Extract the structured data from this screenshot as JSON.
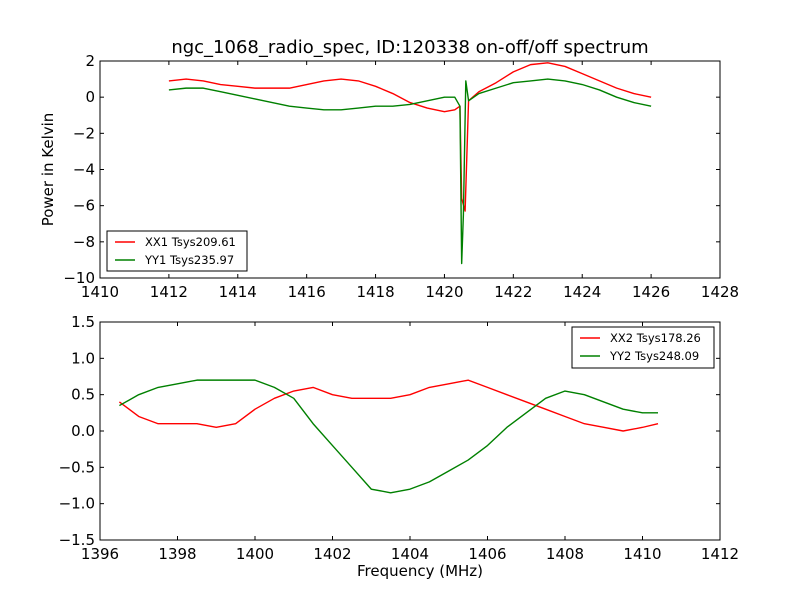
{
  "figure": {
    "title": "ngc_1068_radio_spec, ID:120338 on-off/off spectrum"
  },
  "chart_data": [
    {
      "type": "line",
      "ylabel": "Power in Kelvin",
      "xlabel": "",
      "xlim": [
        1410,
        1428
      ],
      "ylim": [
        -10,
        2
      ],
      "xticks": [
        1410,
        1412,
        1414,
        1416,
        1418,
        1420,
        1422,
        1424,
        1426,
        1428
      ],
      "xtick_labels": [
        "1410",
        "1412",
        "1414",
        "1416",
        "1418",
        "1420",
        "1422",
        "1424",
        "1426",
        "1428"
      ],
      "yticks": [
        -10,
        -8,
        -6,
        -4,
        -2,
        0,
        2
      ],
      "ytick_labels": [
        "−10",
        "−8",
        "−6",
        "−4",
        "−2",
        "0",
        "2"
      ],
      "grid": false,
      "legend_position": "lower-left",
      "series": [
        {
          "name": "XX1 Tsys209.61",
          "color": "#ff0000",
          "x": [
            1412.0,
            1412.5,
            1413.0,
            1413.5,
            1414.0,
            1414.5,
            1415.0,
            1415.5,
            1416.0,
            1416.5,
            1417.0,
            1417.5,
            1418.0,
            1418.5,
            1419.0,
            1419.5,
            1420.0,
            1420.3,
            1420.45,
            1420.5,
            1420.6,
            1420.7,
            1421.0,
            1421.5,
            1422.0,
            1422.5,
            1423.0,
            1423.5,
            1424.0,
            1424.5,
            1425.0,
            1425.5,
            1426.0
          ],
          "y": [
            0.9,
            1.0,
            0.9,
            0.7,
            0.6,
            0.5,
            0.5,
            0.5,
            0.7,
            0.9,
            1.0,
            0.9,
            0.6,
            0.2,
            -0.3,
            -0.6,
            -0.8,
            -0.7,
            -0.5,
            -5.6,
            -6.3,
            -0.2,
            0.3,
            0.8,
            1.4,
            1.8,
            1.9,
            1.7,
            1.3,
            0.9,
            0.5,
            0.2,
            0.0
          ]
        },
        {
          "name": "YY1 Tsys235.97",
          "color": "#008000",
          "x": [
            1412.0,
            1412.5,
            1413.0,
            1413.5,
            1414.0,
            1414.5,
            1415.0,
            1415.5,
            1416.0,
            1416.5,
            1417.0,
            1417.5,
            1418.0,
            1418.5,
            1419.0,
            1419.5,
            1420.0,
            1420.3,
            1420.45,
            1420.5,
            1420.55,
            1420.62,
            1420.7,
            1421.0,
            1421.5,
            1422.0,
            1422.5,
            1423.0,
            1423.5,
            1424.0,
            1424.5,
            1425.0,
            1425.5,
            1426.0
          ],
          "y": [
            0.4,
            0.5,
            0.5,
            0.3,
            0.1,
            -0.1,
            -0.3,
            -0.5,
            -0.6,
            -0.7,
            -0.7,
            -0.6,
            -0.5,
            -0.5,
            -0.4,
            -0.2,
            0.0,
            0.0,
            -0.5,
            -9.2,
            -6.5,
            0.9,
            -0.2,
            0.2,
            0.5,
            0.8,
            0.9,
            1.0,
            0.9,
            0.7,
            0.4,
            0.0,
            -0.3,
            -0.5
          ]
        }
      ]
    },
    {
      "type": "line",
      "ylabel": "",
      "xlabel": "Frequency (MHz)",
      "xlim": [
        1396,
        1412
      ],
      "ylim": [
        -1.5,
        1.5
      ],
      "xticks": [
        1396,
        1398,
        1400,
        1402,
        1404,
        1406,
        1408,
        1410,
        1412
      ],
      "xtick_labels": [
        "1396",
        "1398",
        "1400",
        "1402",
        "1404",
        "1406",
        "1408",
        "1410",
        "1412"
      ],
      "yticks": [
        -1.5,
        -1.0,
        -0.5,
        0.0,
        0.5,
        1.0,
        1.5
      ],
      "ytick_labels": [
        "−1.5",
        "−1.0",
        "−0.5",
        "0.0",
        "0.5",
        "1.0",
        "1.5"
      ],
      "grid": false,
      "legend_position": "upper-right",
      "series": [
        {
          "name": "XX2 Tsys178.26",
          "color": "#ff0000",
          "x": [
            1396.5,
            1397.0,
            1397.5,
            1398.0,
            1398.5,
            1399.0,
            1399.5,
            1400.0,
            1400.5,
            1401.0,
            1401.5,
            1402.0,
            1402.5,
            1403.0,
            1403.5,
            1404.0,
            1404.5,
            1405.0,
            1405.5,
            1406.0,
            1406.5,
            1407.0,
            1407.5,
            1408.0,
            1408.5,
            1409.0,
            1409.5,
            1410.0,
            1410.4
          ],
          "y": [
            0.4,
            0.2,
            0.1,
            0.1,
            0.1,
            0.05,
            0.1,
            0.3,
            0.45,
            0.55,
            0.6,
            0.5,
            0.45,
            0.45,
            0.45,
            0.5,
            0.6,
            0.65,
            0.7,
            0.6,
            0.5,
            0.4,
            0.3,
            0.2,
            0.1,
            0.05,
            0.0,
            0.05,
            0.1
          ]
        },
        {
          "name": "YY2 Tsys248.09",
          "color": "#008000",
          "x": [
            1396.5,
            1397.0,
            1397.5,
            1398.0,
            1398.5,
            1399.0,
            1399.5,
            1400.0,
            1400.5,
            1401.0,
            1401.5,
            1402.0,
            1402.5,
            1403.0,
            1403.5,
            1404.0,
            1404.5,
            1405.0,
            1405.5,
            1406.0,
            1406.5,
            1407.0,
            1407.5,
            1408.0,
            1408.5,
            1409.0,
            1409.5,
            1410.0,
            1410.4
          ],
          "y": [
            0.35,
            0.5,
            0.6,
            0.65,
            0.7,
            0.7,
            0.7,
            0.7,
            0.6,
            0.45,
            0.1,
            -0.2,
            -0.5,
            -0.8,
            -0.85,
            -0.8,
            -0.7,
            -0.55,
            -0.4,
            -0.2,
            0.05,
            0.25,
            0.45,
            0.55,
            0.5,
            0.4,
            0.3,
            0.25,
            0.25
          ]
        }
      ]
    }
  ]
}
